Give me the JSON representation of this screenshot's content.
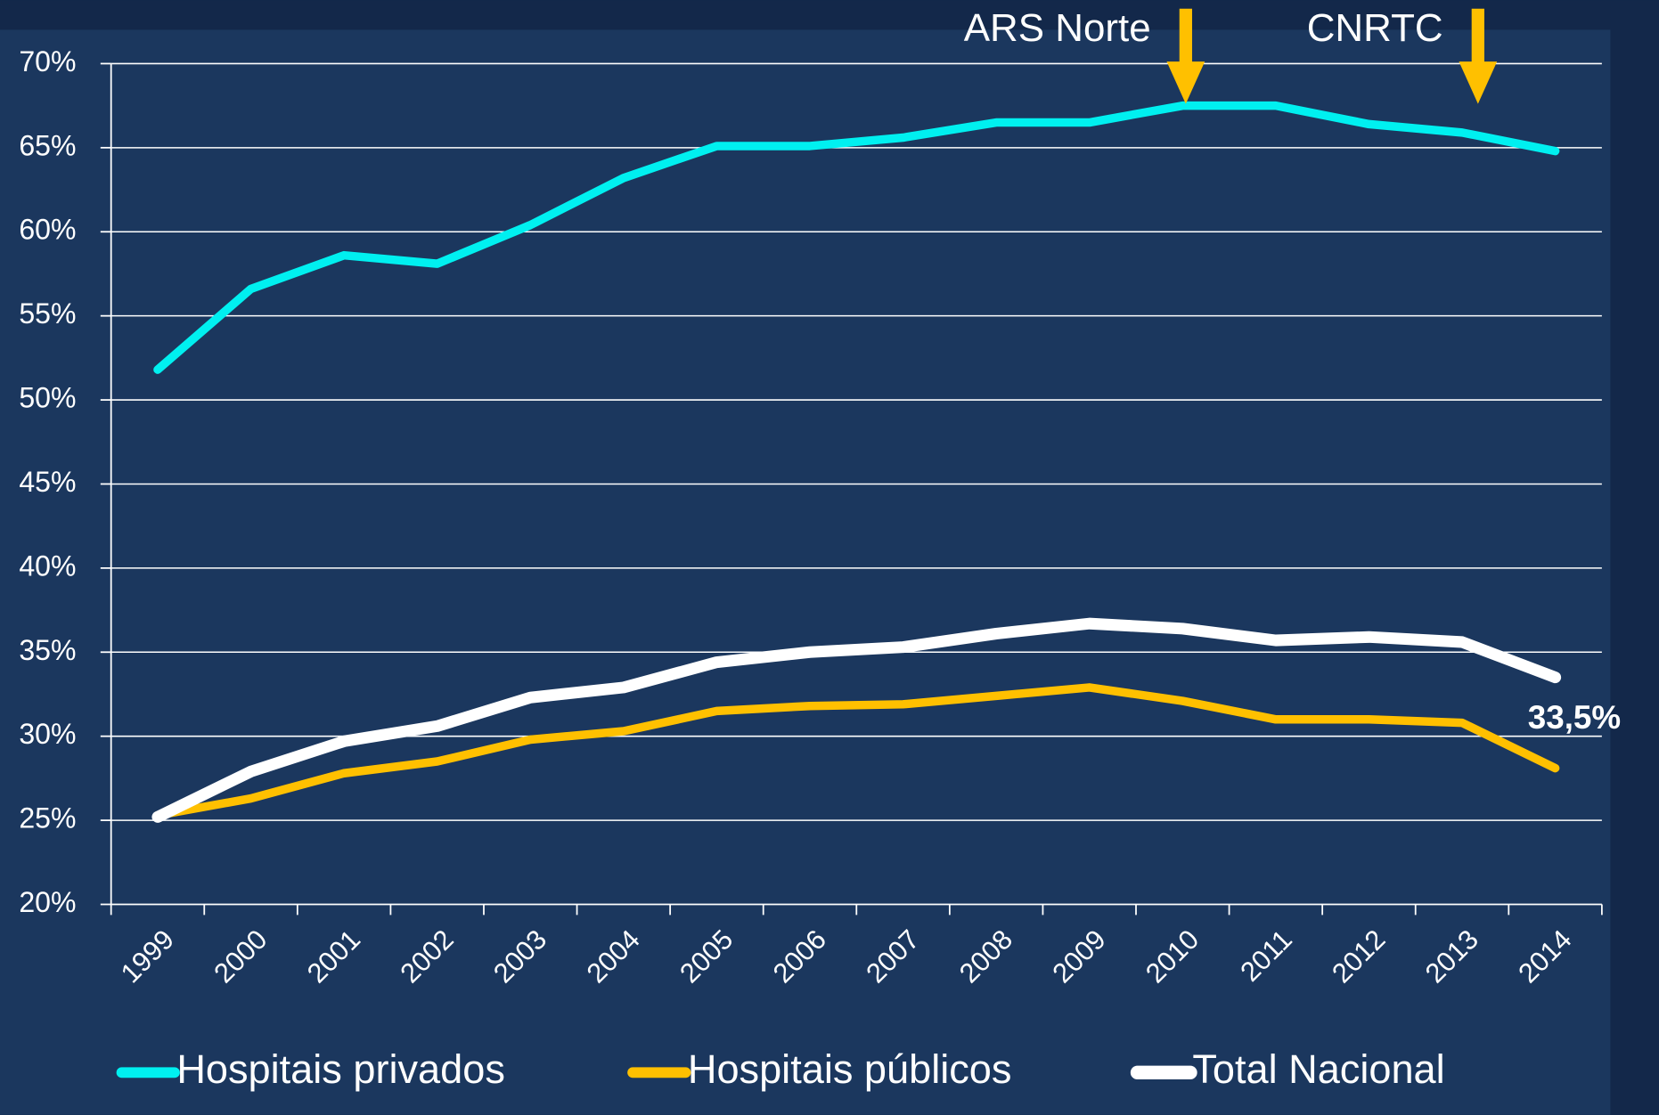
{
  "chart_data": {
    "type": "line",
    "categories": [
      "1999",
      "2000",
      "2001",
      "2002",
      "2003",
      "2004",
      "2005",
      "2006",
      "2007",
      "2008",
      "2009",
      "2010",
      "2011",
      "2012",
      "2013",
      "2014"
    ],
    "series": [
      {
        "name": "Hospitais privados",
        "color": "#00f0f0",
        "values": [
          51.8,
          56.6,
          58.6,
          58.1,
          60.4,
          63.2,
          65.1,
          65.1,
          65.6,
          66.5,
          66.5,
          67.5,
          67.5,
          66.4,
          65.9,
          64.8
        ]
      },
      {
        "name": "Hospitais públicos",
        "color": "#ffc000",
        "values": [
          25.3,
          26.3,
          27.8,
          28.5,
          29.8,
          30.3,
          31.5,
          31.8,
          31.9,
          32.4,
          32.9,
          32.1,
          31.0,
          31.0,
          30.8,
          28.1
        ]
      },
      {
        "name": "Total Nacional",
        "color": "#ffffff",
        "values": [
          25.2,
          27.9,
          29.7,
          30.6,
          32.3,
          32.9,
          34.4,
          35.0,
          35.3,
          36.1,
          36.7,
          36.4,
          35.7,
          35.9,
          35.6,
          33.5
        ],
        "value_labels": [
          null,
          null,
          null,
          null,
          null,
          null,
          null,
          null,
          null,
          null,
          null,
          null,
          null,
          null,
          null,
          "33,5%"
        ]
      }
    ],
    "annotations": [
      {
        "text": "ARS Norte",
        "category": "2010"
      },
      {
        "text": "CNRTC",
        "category": "2013"
      }
    ],
    "ylim": [
      20,
      70
    ],
    "yticks": [
      {
        "value": 20,
        "label": "20%"
      },
      {
        "value": 25,
        "label": "25%"
      },
      {
        "value": 30,
        "label": "30%"
      },
      {
        "value": 35,
        "label": "35%"
      },
      {
        "value": 40,
        "label": "40%"
      },
      {
        "value": 45,
        "label": "45%"
      },
      {
        "value": 50,
        "label": "50%"
      },
      {
        "value": 55,
        "label": "55%"
      },
      {
        "value": 60,
        "label": "60%"
      },
      {
        "value": 65,
        "label": "65%"
      },
      {
        "value": 70,
        "label": "70%"
      }
    ],
    "grid": true,
    "legend": "bottom"
  }
}
